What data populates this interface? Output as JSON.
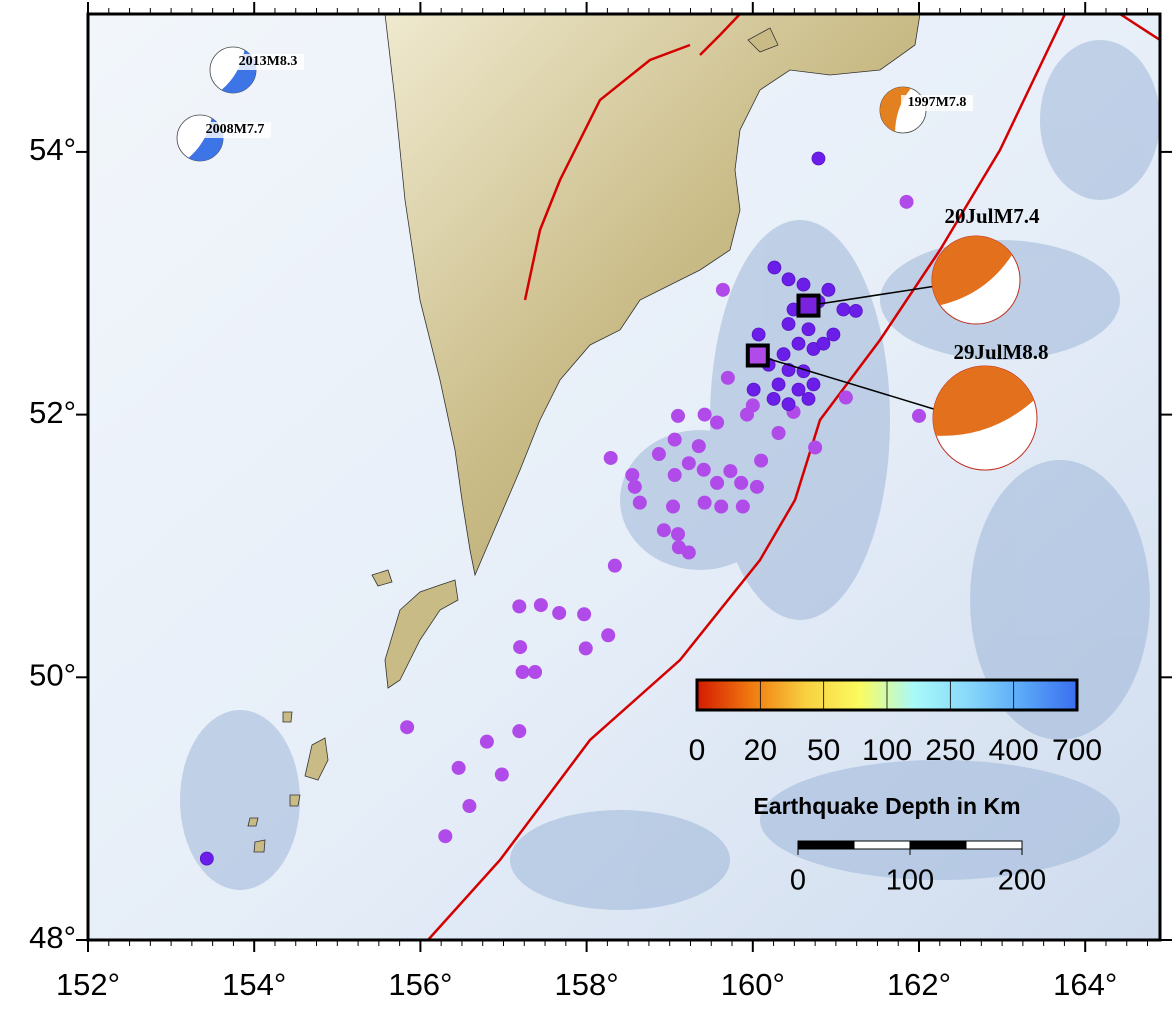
{
  "chart_data": {
    "type": "map",
    "xlim": [
      152,
      164.9
    ],
    "ylim": [
      48,
      55.05
    ],
    "xticks": [
      {
        "value": 152,
        "label": "152°"
      },
      {
        "value": 154,
        "label": "154°"
      },
      {
        "value": 156,
        "label": "156°"
      },
      {
        "value": 158,
        "label": "158°"
      },
      {
        "value": 160,
        "label": "160°"
      },
      {
        "value": 162,
        "label": "162°"
      },
      {
        "value": 164,
        "label": "164°"
      }
    ],
    "yticks": [
      {
        "value": 48,
        "label": "48°"
      },
      {
        "value": 50,
        "label": "50°"
      },
      {
        "value": 52,
        "label": "52°"
      },
      {
        "value": 54,
        "label": "54°"
      }
    ],
    "series": [
      {
        "color": "#b04ae8",
        "x": [
          157.19,
          157.45,
          157.67,
          157.97,
          158.26,
          157.99,
          157.2,
          157.23,
          157.38,
          155.84,
          157.19,
          156.8,
          156.46,
          156.98,
          156.59,
          156.3,
          158.34,
          159.11,
          159.23,
          159.1,
          158.93,
          159.04,
          158.55,
          158.64,
          158.29,
          158.58,
          158.87,
          159.06,
          159.23,
          159.41,
          159.57,
          159.42,
          159.62,
          159.88,
          159.86,
          159.73,
          160.05,
          160.1,
          159.57,
          159.06,
          159.35,
          159.93,
          160.0,
          160.31,
          160.49,
          159.64,
          159.7,
          159.42,
          161.12,
          161.85,
          162.0,
          160.75,
          159.1
        ],
        "y": [
          50.54,
          50.55,
          50.49,
          50.48,
          50.32,
          50.22,
          50.23,
          50.04,
          50.04,
          49.62,
          49.59,
          49.51,
          49.31,
          49.26,
          49.02,
          48.79,
          50.85,
          50.99,
          50.95,
          51.09,
          51.12,
          51.3,
          51.54,
          51.33,
          51.67,
          51.45,
          51.7,
          51.54,
          51.63,
          51.58,
          51.48,
          51.33,
          51.3,
          51.3,
          51.48,
          51.57,
          51.45,
          51.65,
          51.94,
          51.81,
          51.76,
          52.0,
          52.07,
          51.86,
          52.02,
          52.95,
          52.28,
          52.0,
          52.13,
          53.62,
          51.99,
          51.75,
          51.99
        ]
      },
      {
        "color": "#6a1ee8",
        "x": [
          160.79,
          153.43,
          160.26,
          160.43,
          160.61,
          160.91,
          160.79,
          160.49,
          160.43,
          160.67,
          160.55,
          160.73,
          160.37,
          160.19,
          160.43,
          160.61,
          160.31,
          160.55,
          160.73,
          160.25,
          160.43,
          160.67,
          160.07,
          160.01,
          161.09,
          161.24,
          160.97,
          160.85
        ],
        "y": [
          53.95,
          48.62,
          53.12,
          53.03,
          52.99,
          52.95,
          52.86,
          52.8,
          52.69,
          52.65,
          52.54,
          52.5,
          52.46,
          52.38,
          52.34,
          52.33,
          52.23,
          52.19,
          52.23,
          52.12,
          52.08,
          52.12,
          52.61,
          52.19,
          52.8,
          52.79,
          52.61,
          52.54
        ]
      }
    ],
    "mainshocks": [
      {
        "label": "20JulM7.4",
        "x": 160.67,
        "y": 52.83,
        "color": "#7b22e0"
      },
      {
        "label": "29JulM8.8",
        "x": 160.06,
        "y": 52.45,
        "color": "#b04ae8"
      }
    ],
    "historical": [
      {
        "label": "2013M8.3",
        "color": "#3d74e6"
      },
      {
        "label": "2008M7.7",
        "color": "#3d74e6"
      },
      {
        "label": "1997M7.8",
        "color": "#e3801f"
      }
    ],
    "colorbar": {
      "title": "Earthquake Depth in Km",
      "ticks": [
        0,
        20,
        50,
        100,
        250,
        400,
        700
      ],
      "colors": [
        "#d41a00",
        "#f07a10",
        "#f8d040",
        "#fbfb60",
        "#a8fafa",
        "#88d8fa",
        "#5aa8f8",
        "#3a6ef0"
      ]
    },
    "scalebar": {
      "ticks": [
        0,
        100,
        200
      ]
    }
  }
}
